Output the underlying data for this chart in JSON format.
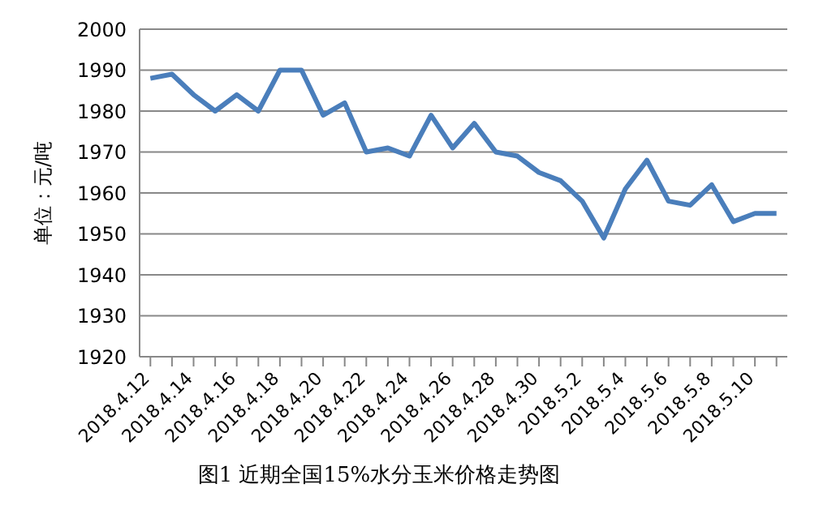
{
  "chart_data": {
    "type": "line",
    "title": "图1  近期全国15%水分玉米价格走势图",
    "ylabel": "单位：元/吨",
    "categories": [
      "2018.4.12",
      null,
      "2018.4.14",
      null,
      "2018.4.16",
      null,
      "2018.4.18",
      null,
      "2018.4.20",
      null,
      "2018.4.22",
      null,
      "2018.4.24",
      null,
      "2018.4.26",
      null,
      "2018.4.28",
      null,
      "2018.4.30",
      null,
      "2018.5.2",
      null,
      "2018.5.4",
      null,
      "2018.5.6",
      null,
      "2018.5.8",
      null,
      "2018.5.10",
      null
    ],
    "series": [
      {
        "color": "#4a7ebb",
        "values": [
          1988,
          1989,
          1984,
          1980,
          1984,
          1980,
          1990,
          1990,
          1979,
          1982,
          1970,
          1971,
          1969,
          1979,
          1971,
          1977,
          1970,
          1969,
          1965,
          1963,
          1958,
          1949,
          1961,
          1968,
          1958,
          1957,
          1962,
          1953,
          1955,
          1955
        ]
      }
    ],
    "ylim": [
      1920,
      2000
    ],
    "yticks": [
      1920,
      1930,
      1940,
      1950,
      1960,
      1970,
      1980,
      1990,
      2000
    ],
    "grid": "y",
    "marker": "none",
    "line_style": "solid"
  }
}
